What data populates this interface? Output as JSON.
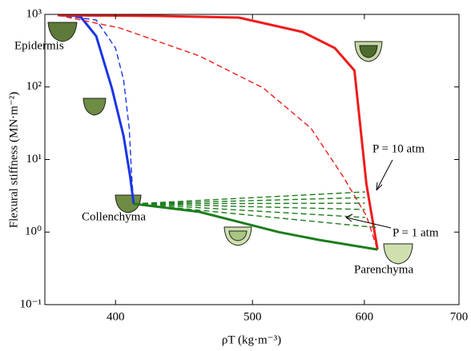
{
  "chart_data": {
    "type": "line",
    "xlabel": "ρT (kg·m⁻³)",
    "ylabel": "Flexural stiffness (MN·m⁻²)",
    "xlog": true,
    "ylog": true,
    "xlim": [
      356.5,
      700
    ],
    "ylim": [
      0.1,
      1000
    ],
    "xticks": [
      400,
      500,
      600,
      700
    ],
    "yticks": [
      {
        "value": 0.1,
        "label": "10⁻¹"
      },
      {
        "value": 1,
        "label": "10⁰"
      },
      {
        "value": 10,
        "label": "10¹"
      },
      {
        "value": 100,
        "label": "10²"
      },
      {
        "value": 1000,
        "label": "10³"
      }
    ],
    "annotations": [
      "Epidermis",
      "Collenchyma",
      "Parenchyma",
      "P = 10 atm",
      "P = 1 atm"
    ],
    "series": [
      {
        "color": "#1a35e6",
        "dashed": false,
        "x": [
          364,
          377.5,
          387.6,
          397.6,
          405.3,
          409.6,
          412
        ],
        "values": [
          975,
          950,
          501,
          97,
          21,
          5.9,
          2.45
        ]
      },
      {
        "color": "#1a35e6",
        "dashed": true,
        "x": [
          364,
          387.6,
          400,
          405.3,
          409,
          410.7,
          412
        ],
        "values": [
          975,
          837,
          344,
          125,
          27,
          5.9,
          2.45
        ]
      },
      {
        "color": "#ee1c1c",
        "dashed": false,
        "x": [
          364,
          429.6,
          489,
          542.6,
          571.8,
          590.4,
          602,
          613
        ],
        "values": [
          975,
          950,
          903,
          572,
          344,
          169,
          4.61,
          0.575
        ]
      },
      {
        "color": "#ee1c1c",
        "dashed": true,
        "x": [
          364,
          402.8,
          458.6,
          508.8,
          550,
          579.3,
          602,
          613
        ],
        "values": [
          975,
          650,
          267,
          97,
          27,
          5.9,
          1.67,
          0.575
        ]
      },
      {
        "color": "#1e7d1e",
        "dashed": false,
        "x": [
          412,
          458.6,
          522,
          557,
          613
        ],
        "values": [
          2.45,
          1.9,
          1.0,
          0.78,
          0.575
        ]
      },
      {
        "color": "#1e7d1e",
        "dashed": true,
        "x": [
          412,
          600.6
        ],
        "values": [
          2.45,
          3.58
        ]
      },
      {
        "color": "#1e7d1e",
        "dashed": true,
        "x": [
          412,
          600.6
        ],
        "values": [
          2.45,
          2.99
        ]
      },
      {
        "color": "#1e7d1e",
        "dashed": true,
        "x": [
          412,
          600.6
        ],
        "values": [
          2.45,
          2.5
        ]
      },
      {
        "color": "#1e7d1e",
        "dashed": true,
        "x": [
          412,
          600.6
        ],
        "values": [
          2.45,
          2.05
        ]
      },
      {
        "color": "#1e7d1e",
        "dashed": true,
        "x": [
          412,
          600.6
        ],
        "values": [
          2.45,
          1.59
        ]
      },
      {
        "color": "#1e7d1e",
        "dashed": true,
        "x": [
          412,
          613
        ],
        "values": [
          2.45,
          1.15
        ]
      }
    ]
  }
}
